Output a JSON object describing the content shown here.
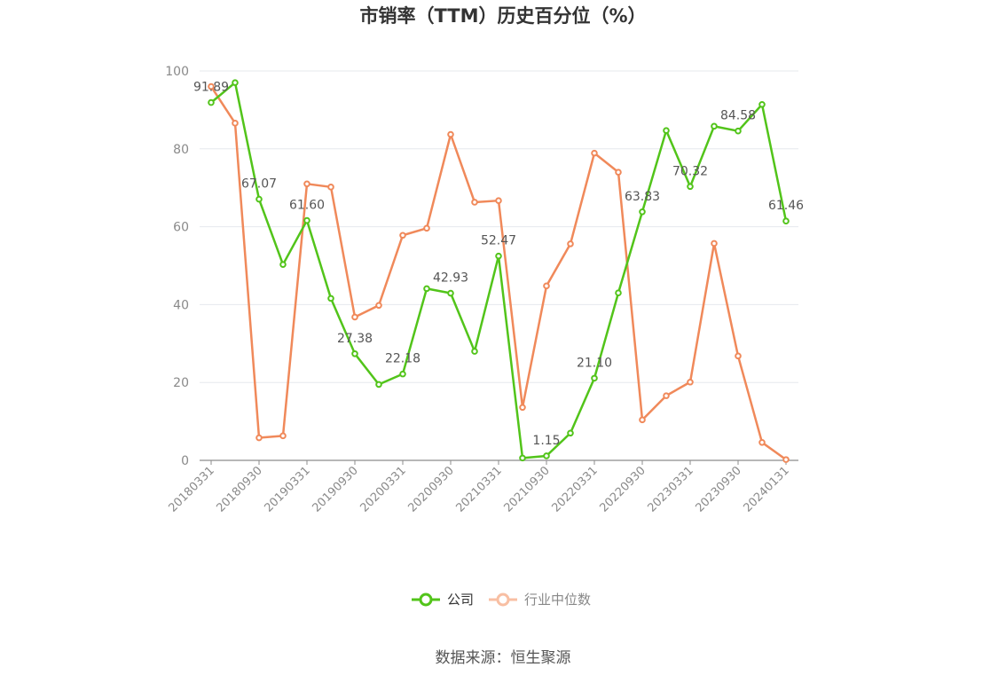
{
  "chart_data": {
    "type": "line",
    "title": "市销率（TTM）历史百分位（%）",
    "source": "数据来源：恒生聚源",
    "ylim": [
      0,
      100
    ],
    "yticks": [
      "0",
      "20",
      "40",
      "60",
      "80",
      "100"
    ],
    "x": [
      "20180331",
      "20180630",
      "20180930",
      "20181231",
      "20190331",
      "20190630",
      "20190930",
      "20191231",
      "20200331",
      "20200630",
      "20200930",
      "20201231",
      "20210331",
      "20210630",
      "20210930",
      "20211231",
      "20220331",
      "20220630",
      "20220930",
      "20221231",
      "20230331",
      "20230630",
      "20230930",
      "20231231",
      "20240131"
    ],
    "xtick_labels": [
      "20180331",
      "20180930",
      "20190331",
      "20190930",
      "20200331",
      "20200930",
      "20210331",
      "20210930",
      "20220331",
      "20220930",
      "20230331",
      "20230930",
      "20240131"
    ],
    "grid": true,
    "legend_position": "bottom",
    "series": [
      {
        "name": "公司",
        "color": "#52c41a",
        "values": [
          91.89,
          97.0,
          67.07,
          50.3,
          61.6,
          41.6,
          27.38,
          19.5,
          22.18,
          44.1,
          42.93,
          28.0,
          52.47,
          0.6,
          1.15,
          7.0,
          21.1,
          43.0,
          63.83,
          84.7,
          70.32,
          85.8,
          84.58,
          91.4,
          61.46
        ],
        "labels": {
          "0": "91.89",
          "2": "67.07",
          "4": "61.60",
          "6": "27.38",
          "8": "22.18",
          "10": "42.93",
          "12": "52.47",
          "14": "1.15",
          "16": "21.10",
          "18": "63.83",
          "20": "70.32",
          "22": "84.58",
          "24": "61.46"
        }
      },
      {
        "name": "行业中位数",
        "color": "#f0895a",
        "values": [
          96.0,
          86.6,
          5.8,
          6.3,
          71.0,
          70.2,
          36.8,
          39.8,
          57.8,
          59.6,
          83.7,
          66.3,
          66.7,
          13.6,
          44.8,
          55.6,
          78.9,
          74.0,
          10.4,
          16.6,
          20.1,
          55.7,
          26.8,
          4.6,
          0.2
        ],
        "labels": {}
      }
    ],
    "legend_colors": {
      "company_text": "#333333",
      "industry_text": "#888888",
      "industry_symbol": "#f8bfa3"
    }
  }
}
